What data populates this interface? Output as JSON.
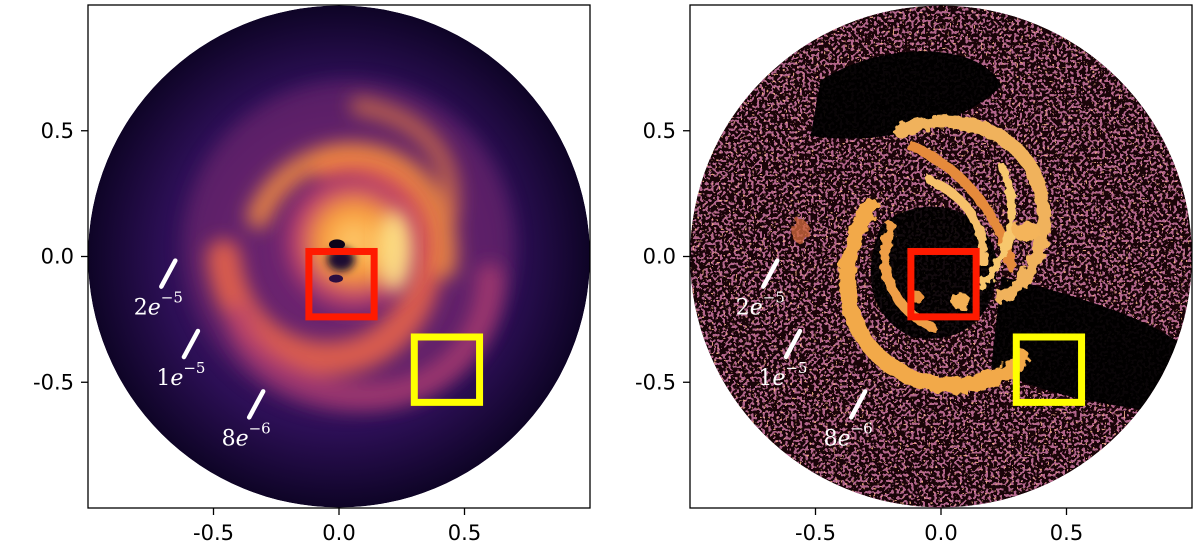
{
  "chart_data": [
    {
      "type": "heatmap",
      "panel": "left",
      "title": "",
      "xlabel": "",
      "ylabel": "",
      "xlim": [
        -1.0,
        1.0
      ],
      "ylim": [
        -1.0,
        1.0
      ],
      "xticks": [
        -0.5,
        0.0,
        0.5
      ],
      "xtick_labels": [
        "-0.5",
        "0.0",
        "0.5"
      ],
      "yticks": [
        0.5,
        0.0,
        -0.5
      ],
      "ytick_labels": [
        "0.5",
        "0.0",
        "-0.5"
      ],
      "colormap": "inferno",
      "disk_radius": 1.0,
      "regions": [
        {
          "color": "#ff1a00",
          "x": [
            -0.12,
            0.14
          ],
          "y": [
            -0.24,
            0.02
          ]
        },
        {
          "color": "#ffff00",
          "x": [
            0.3,
            0.56
          ],
          "y": [
            -0.58,
            -0.32
          ]
        }
      ],
      "annotations": [
        {
          "mantissa": "2",
          "exponent": "−5",
          "x": -0.68,
          "y": -0.08
        },
        {
          "mantissa": "1",
          "exponent": "−5",
          "x": -0.59,
          "y": -0.36
        },
        {
          "mantissa": "8",
          "exponent": "−6",
          "x": -0.33,
          "y": -0.6
        }
      ],
      "grid": false
    },
    {
      "type": "heatmap",
      "panel": "right",
      "title": "",
      "xlabel": "",
      "ylabel": "",
      "xlim": [
        -1.0,
        1.0
      ],
      "ylim": [
        -1.0,
        1.0
      ],
      "xticks": [
        -0.5,
        0.0,
        0.5
      ],
      "xtick_labels": [
        "-0.5",
        "0.0",
        "0.5"
      ],
      "yticks": [
        0.5,
        0.0,
        -0.5
      ],
      "ytick_labels": [
        "0.5",
        "0.0",
        "-0.5"
      ],
      "colormap": "inferno",
      "disk_radius": 1.0,
      "regions": [
        {
          "color": "#ff1a00",
          "x": [
            -0.12,
            0.14
          ],
          "y": [
            -0.24,
            0.02
          ]
        },
        {
          "color": "#ffff00",
          "x": [
            0.3,
            0.56
          ],
          "y": [
            -0.58,
            -0.32
          ]
        }
      ],
      "annotations": [
        {
          "mantissa": "2",
          "exponent": "−5",
          "x": -0.68,
          "y": -0.08
        },
        {
          "mantissa": "1",
          "exponent": "−5",
          "x": -0.59,
          "y": -0.36
        },
        {
          "mantissa": "8",
          "exponent": "−6",
          "x": -0.33,
          "y": -0.6
        }
      ],
      "grid": false
    }
  ]
}
